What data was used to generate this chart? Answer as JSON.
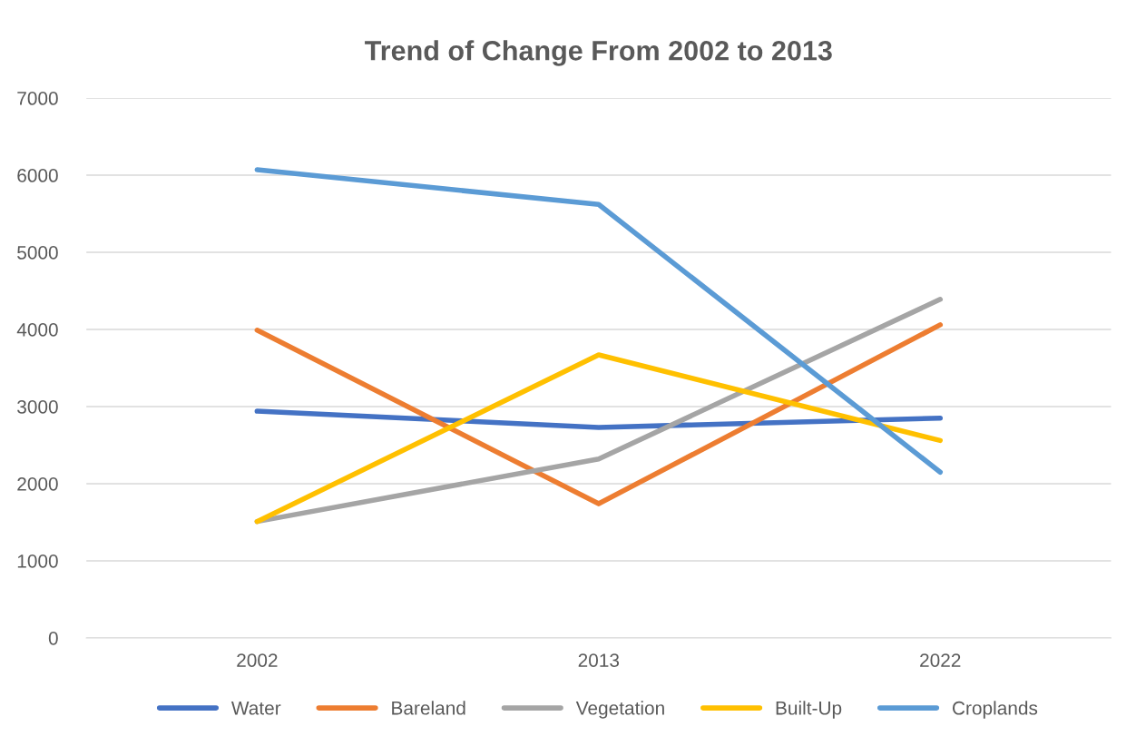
{
  "chart_data": {
    "type": "line",
    "title": "Trend of Change From 2002 to 2013",
    "categories": [
      "2002",
      "2013",
      "2022"
    ],
    "series": [
      {
        "name": "Water",
        "color": "#4472c4",
        "values": [
          2940,
          2730,
          2850
        ]
      },
      {
        "name": "Bareland",
        "color": "#ed7d31",
        "values": [
          3990,
          1740,
          4060
        ]
      },
      {
        "name": "Vegetation",
        "color": "#a5a5a5",
        "values": [
          1510,
          2320,
          4390
        ]
      },
      {
        "name": "Built-Up",
        "color": "#ffc000",
        "values": [
          1510,
          3670,
          2560
        ]
      },
      {
        "name": "Croplands",
        "color": "#5b9bd5",
        "values": [
          6070,
          5620,
          2150
        ]
      }
    ],
    "ylim": [
      0,
      7000
    ],
    "yticks": [
      0,
      1000,
      2000,
      3000,
      4000,
      5000,
      6000,
      7000
    ],
    "grid": "y",
    "legend": "bottom",
    "marker": "none",
    "line_style": "solid"
  }
}
